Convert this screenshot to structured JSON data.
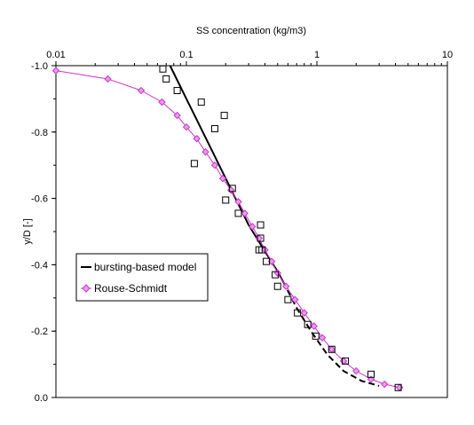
{
  "chart_data": {
    "type": "scatter",
    "xlabel": "SS concentration (kg/m3)",
    "ylabel": "y/D  [-]",
    "x_scale": "log",
    "x_axis_position": "top",
    "xlim": [
      0.01,
      10
    ],
    "ylim": [
      -1.0,
      0.0
    ],
    "y_inverted": true,
    "x_ticks": [
      0.01,
      0.1,
      1,
      10
    ],
    "x_tick_labels": [
      "0.01",
      "0.1",
      "1",
      "10"
    ],
    "y_ticks": [
      -1.0,
      -0.8,
      -0.6,
      -0.4,
      -0.2,
      0.0
    ],
    "y_tick_labels": [
      "-1.0",
      "-0.8",
      "-0.6",
      "-0.4",
      "-0.2",
      "0.0"
    ],
    "grid": false,
    "legend_position": "lower-left",
    "series": [
      {
        "name": "",
        "kind": "markers",
        "marker": "open-square",
        "color": "#000000",
        "x": [
          0.066,
          0.07,
          0.085,
          0.115,
          0.13,
          0.165,
          0.195,
          0.2,
          0.225,
          0.25,
          0.36,
          0.37,
          0.37,
          0.38,
          0.41,
          0.48,
          0.5,
          0.6,
          0.71,
          0.85,
          0.98,
          1.3,
          1.65,
          2.6,
          4.2
        ],
        "y": [
          -0.99,
          -0.96,
          -0.925,
          -0.705,
          -0.89,
          -0.81,
          -0.85,
          -0.595,
          -0.63,
          -0.555,
          -0.445,
          -0.52,
          -0.48,
          -0.445,
          -0.41,
          -0.37,
          -0.335,
          -0.295,
          -0.255,
          -0.22,
          -0.185,
          -0.145,
          -0.11,
          -0.07,
          -0.03
        ]
      },
      {
        "name": "bursting-based model",
        "kind": "line-solid-then-dashed",
        "color": "#000000",
        "solid_x": [
          0.075,
          0.1,
          0.15,
          0.2,
          0.3,
          0.4,
          0.5,
          0.55
        ],
        "solid_y": [
          -1.0,
          -0.9,
          -0.76,
          -0.66,
          -0.52,
          -0.44,
          -0.38,
          -0.35
        ],
        "dashed_x": [
          0.55,
          0.7,
          0.9,
          1.2,
          1.6,
          2.2,
          3.0
        ],
        "dashed_y": [
          -0.35,
          -0.27,
          -0.2,
          -0.13,
          -0.08,
          -0.05,
          -0.035
        ]
      },
      {
        "name": "Rouse-Schmidt",
        "kind": "line-with-diamonds",
        "color": "#cc33cc",
        "x": [
          0.01,
          0.025,
          0.045,
          0.065,
          0.085,
          0.1,
          0.12,
          0.14,
          0.165,
          0.19,
          0.22,
          0.25,
          0.28,
          0.32,
          0.36,
          0.4,
          0.45,
          0.5,
          0.58,
          0.68,
          0.8,
          0.95,
          1.1,
          1.3,
          1.6,
          2.0,
          2.6,
          3.3,
          4.3
        ],
        "y": [
          -0.985,
          -0.96,
          -0.925,
          -0.89,
          -0.85,
          -0.815,
          -0.78,
          -0.74,
          -0.7,
          -0.66,
          -0.625,
          -0.59,
          -0.555,
          -0.515,
          -0.48,
          -0.445,
          -0.41,
          -0.375,
          -0.335,
          -0.295,
          -0.255,
          -0.215,
          -0.18,
          -0.145,
          -0.11,
          -0.08,
          -0.055,
          -0.04,
          -0.03
        ]
      }
    ]
  },
  "legend": {
    "bursting_label": "bursting-based model",
    "rouse_label": "Rouse-Schmidt"
  }
}
